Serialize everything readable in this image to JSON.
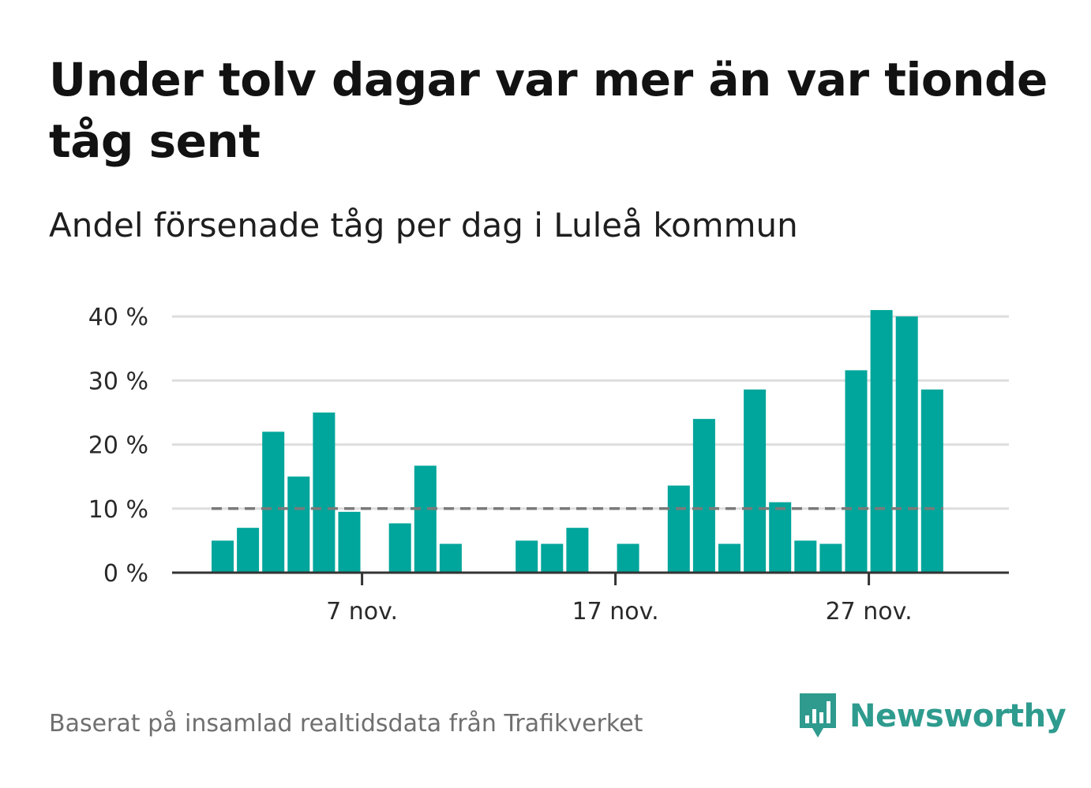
{
  "title": "Under tolv dagar var mer än var tionde tåg sent",
  "subtitle": "Andel försenade tåg per dag i Luleå kommun",
  "source": "Baserat på insamlad realtidsdata från Trafikverket",
  "brand": {
    "name": "Newsworthy",
    "icon": "newsworthy-logo-icon"
  },
  "colors": {
    "bar": "#00a59b",
    "reference": "#7a7a7a",
    "grid": "#dedede",
    "axis": "#333333",
    "brand": "#2e9b8e"
  },
  "chart_data": {
    "type": "bar",
    "title": "Under tolv dagar var mer än var tionde tåg sent",
    "subtitle": "Andel försenade tåg per dag i Luleå kommun",
    "x_start": "1 nov.",
    "x": [
      "1 nov.",
      "2 nov.",
      "3 nov.",
      "4 nov.",
      "5 nov.",
      "6 nov.",
      "7 nov.",
      "8 nov.",
      "9 nov.",
      "10 nov.",
      "11 nov.",
      "12 nov.",
      "13 nov.",
      "14 nov.",
      "15 nov.",
      "16 nov.",
      "17 nov.",
      "18 nov.",
      "19 nov.",
      "20 nov.",
      "21 nov.",
      "22 nov.",
      "23 nov.",
      "24 nov.",
      "25 nov.",
      "26 nov.",
      "27 nov.",
      "28 nov.",
      "29 nov.",
      "30 nov."
    ],
    "values": [
      5,
      7,
      22,
      15,
      25,
      9.5,
      0,
      7.7,
      16.7,
      4.5,
      0,
      0,
      5,
      4.5,
      7,
      0,
      4.5,
      0,
      13.6,
      24,
      4.5,
      28.6,
      11,
      5,
      4.5,
      31.6,
      41,
      40,
      28.6,
      null
    ],
    "x_tick_labels": [
      "7 nov.",
      "17 nov.",
      "27 nov."
    ],
    "y_tick_labels": [
      "0 %",
      "10 %",
      "20 %",
      "30 %",
      "40 %"
    ],
    "y_ticks": [
      0,
      10,
      20,
      30,
      40
    ],
    "ylim": [
      0,
      42
    ],
    "reference_line": 10,
    "grid": true,
    "xlabel": "",
    "ylabel": ""
  }
}
